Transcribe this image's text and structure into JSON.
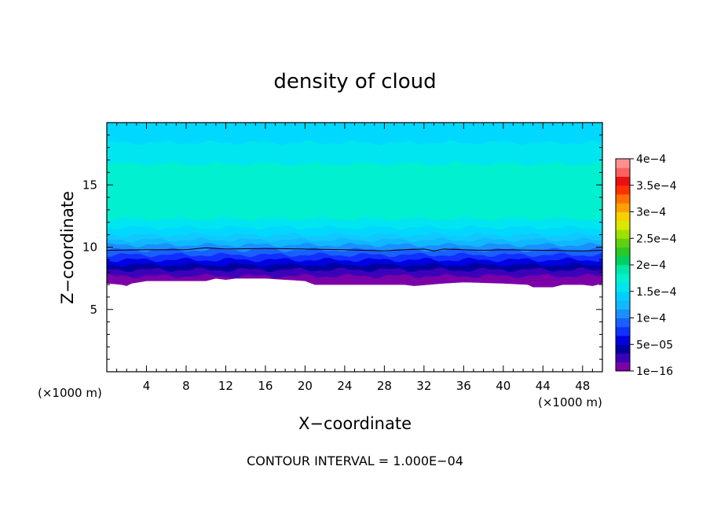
{
  "chart_data": {
    "type": "heatmap",
    "title": "density of cloud",
    "xlabel": "X−coordinate",
    "ylabel": "Z−coordinate",
    "x_unit": "(×1000 m)",
    "z_unit": "(×1000 m)",
    "xlim": [
      0,
      50
    ],
    "ylim": [
      0,
      20
    ],
    "x_ticks": [
      4,
      8,
      12,
      16,
      20,
      24,
      28,
      32,
      36,
      40,
      44,
      48
    ],
    "y_ticks": [
      5,
      10,
      15
    ],
    "footer": "CONTOUR INTERVAL = 1.000E−04",
    "contour_line_level": 0.0001,
    "colorbar": {
      "range": [
        1e-16,
        0.0004
      ],
      "labels": [
        "4e−4",
        "3.5e−4",
        "3e−4",
        "2.5e−4",
        "2e−4",
        "1.5e−4",
        "1e−4",
        "5e−05",
        "1e−16"
      ],
      "colors": [
        "#7b00a8",
        "#3c00b8",
        "#0000a0",
        "#0000e0",
        "#1030ff",
        "#1a60ff",
        "#1a90ff",
        "#10b8ff",
        "#00d0ff",
        "#00e6f0",
        "#00f0d0",
        "#00e8a8",
        "#00d060",
        "#28c828",
        "#60d010",
        "#a0e000",
        "#d8e800",
        "#f8d000",
        "#ffa000",
        "#ff7000",
        "#ff3000",
        "#e81010",
        "#ff6060",
        "#ff9090"
      ]
    },
    "profile": {
      "z_levels": [
        7.2,
        7.7,
        8.2,
        8.6,
        9.0,
        9.4,
        9.8,
        10.2,
        10.6,
        11.0,
        11.6,
        12.3,
        16.7,
        18.4,
        19.8
      ],
      "level_colors": [
        "#7b00a8",
        "#3c00b8",
        "#0000a0",
        "#0000e0",
        "#1030ff",
        "#1a60ff",
        "#1a90ff",
        "#10b8ff",
        "#10c8ff",
        "#00d8ff",
        "#00e6f0",
        "#00f0d0",
        "#00e6f0",
        "#00d8ff"
      ],
      "lower_edge_x": [
        0,
        1.5,
        2,
        2.5,
        4,
        10,
        11,
        12,
        13,
        16,
        20,
        21,
        24,
        28,
        30,
        31,
        34,
        36,
        40,
        42.5,
        43,
        45,
        46,
        48,
        49,
        50
      ],
      "lower_edge_z": [
        7.1,
        7.0,
        6.9,
        7.1,
        7.3,
        7.3,
        7.5,
        7.4,
        7.5,
        7.5,
        7.3,
        7.0,
        7.0,
        7.0,
        7.0,
        6.9,
        7.1,
        7.2,
        7.1,
        7.0,
        6.8,
        6.8,
        7.0,
        7.0,
        6.9,
        7.1
      ],
      "contour_x": [
        0,
        4,
        8,
        10,
        12,
        16,
        20,
        24,
        28,
        30,
        32,
        33,
        34,
        36,
        38,
        40,
        44,
        48,
        50
      ],
      "contour_z": [
        9.75,
        9.8,
        9.8,
        9.95,
        9.85,
        9.9,
        9.85,
        9.8,
        9.7,
        9.8,
        9.85,
        9.7,
        9.85,
        9.8,
        9.75,
        9.8,
        9.75,
        9.7,
        9.75
      ]
    }
  }
}
